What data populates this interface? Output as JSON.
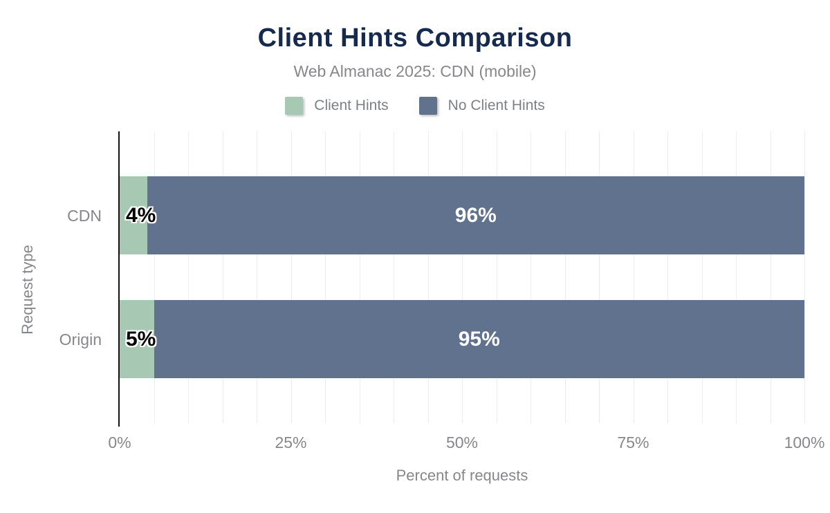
{
  "header": {
    "title": "Client Hints Comparison",
    "subtitle": "Web Almanac 2025: CDN (mobile)"
  },
  "legend": {
    "items": [
      {
        "label": "Client Hints",
        "color": "#a7c9b4"
      },
      {
        "label": "No Client Hints",
        "color": "#61728f"
      }
    ]
  },
  "chart_data": {
    "type": "bar",
    "orientation": "horizontal",
    "stacked": true,
    "title": "Client Hints Comparison",
    "subtitle": "Web Almanac 2025: CDN (mobile)",
    "categories": [
      "CDN",
      "Origin"
    ],
    "series": [
      {
        "name": "Client Hints",
        "color": "#a7c9b4",
        "values": [
          4,
          5
        ]
      },
      {
        "name": "No Client Hints",
        "color": "#61728f",
        "values": [
          96,
          95
        ]
      }
    ],
    "value_labels": [
      [
        "4%",
        "96%"
      ],
      [
        "5%",
        "95%"
      ]
    ],
    "xlabel": "Percent of requests",
    "ylabel": "Request type",
    "xlim": [
      0,
      100
    ],
    "x_ticks": [
      {
        "value": 0,
        "label": "0%"
      },
      {
        "value": 25,
        "label": "25%"
      },
      {
        "value": 50,
        "label": "50%"
      },
      {
        "value": 75,
        "label": "75%"
      },
      {
        "value": 100,
        "label": "100%"
      }
    ],
    "grid": {
      "x_interval": 5,
      "color": "#ececec",
      "on": true
    },
    "legend_position": "top"
  },
  "colors": {
    "title": "#152a4e",
    "muted_text": "#85878b",
    "axis_line": "#111111",
    "background": "#ffffff",
    "value_label_dark": "#000000",
    "value_label_light": "#ffffff"
  }
}
